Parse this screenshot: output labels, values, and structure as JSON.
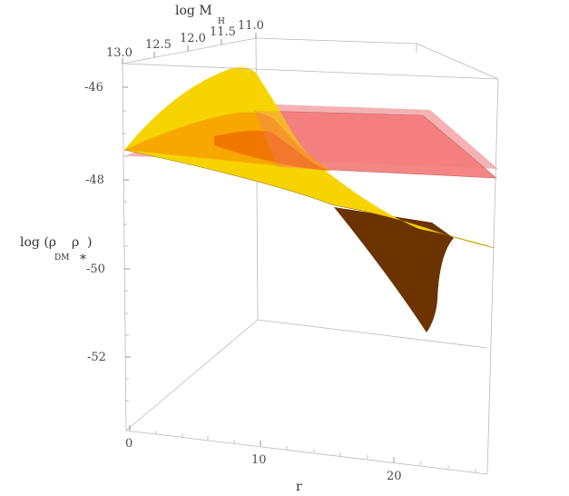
{
  "chart_data": {
    "type": "surface3d",
    "axes": {
      "r": {
        "label": "r",
        "ticks": [
          "0",
          "10",
          "20"
        ],
        "range": [
          0,
          27
        ]
      },
      "logMH": {
        "label": "log M",
        "label_sub": "H",
        "ticks": [
          "13.0",
          "12.5",
          "12.0",
          "11.5",
          "11.0"
        ],
        "range": [
          11,
          13
        ]
      },
      "z": {
        "label": "log (ρ",
        "label_sub": "DM",
        "label_mid": "ρ",
        "label_star": "*",
        "label_end": ")",
        "ticks": [
          "-46",
          "-48",
          "-50",
          "-52"
        ],
        "range": [
          -54,
          -45
        ]
      }
    },
    "surfaces": [
      {
        "name": "",
        "color": "#f5d000",
        "shade": "#e0a000",
        "underside": "#6b3300",
        "profile_at_logMH_13": [
          [
            0,
            -47.4
          ],
          [
            10,
            -48.3
          ],
          [
            20,
            -49.1
          ],
          [
            27,
            -49.8
          ]
        ],
        "peak": {
          "r": 15,
          "logMH": 11.5,
          "log_rho": -45.5
        },
        "dip": {
          "r": 22,
          "logMH": 11,
          "log_rho": -51.6
        }
      },
      {
        "name": "",
        "color": "#f47c7c",
        "opacity": 0.55,
        "type": "plane",
        "log_rho_at_logMH_13": -47.5,
        "log_rho_at_logMH_11": -46.4
      }
    ],
    "grid": false,
    "box": true
  }
}
